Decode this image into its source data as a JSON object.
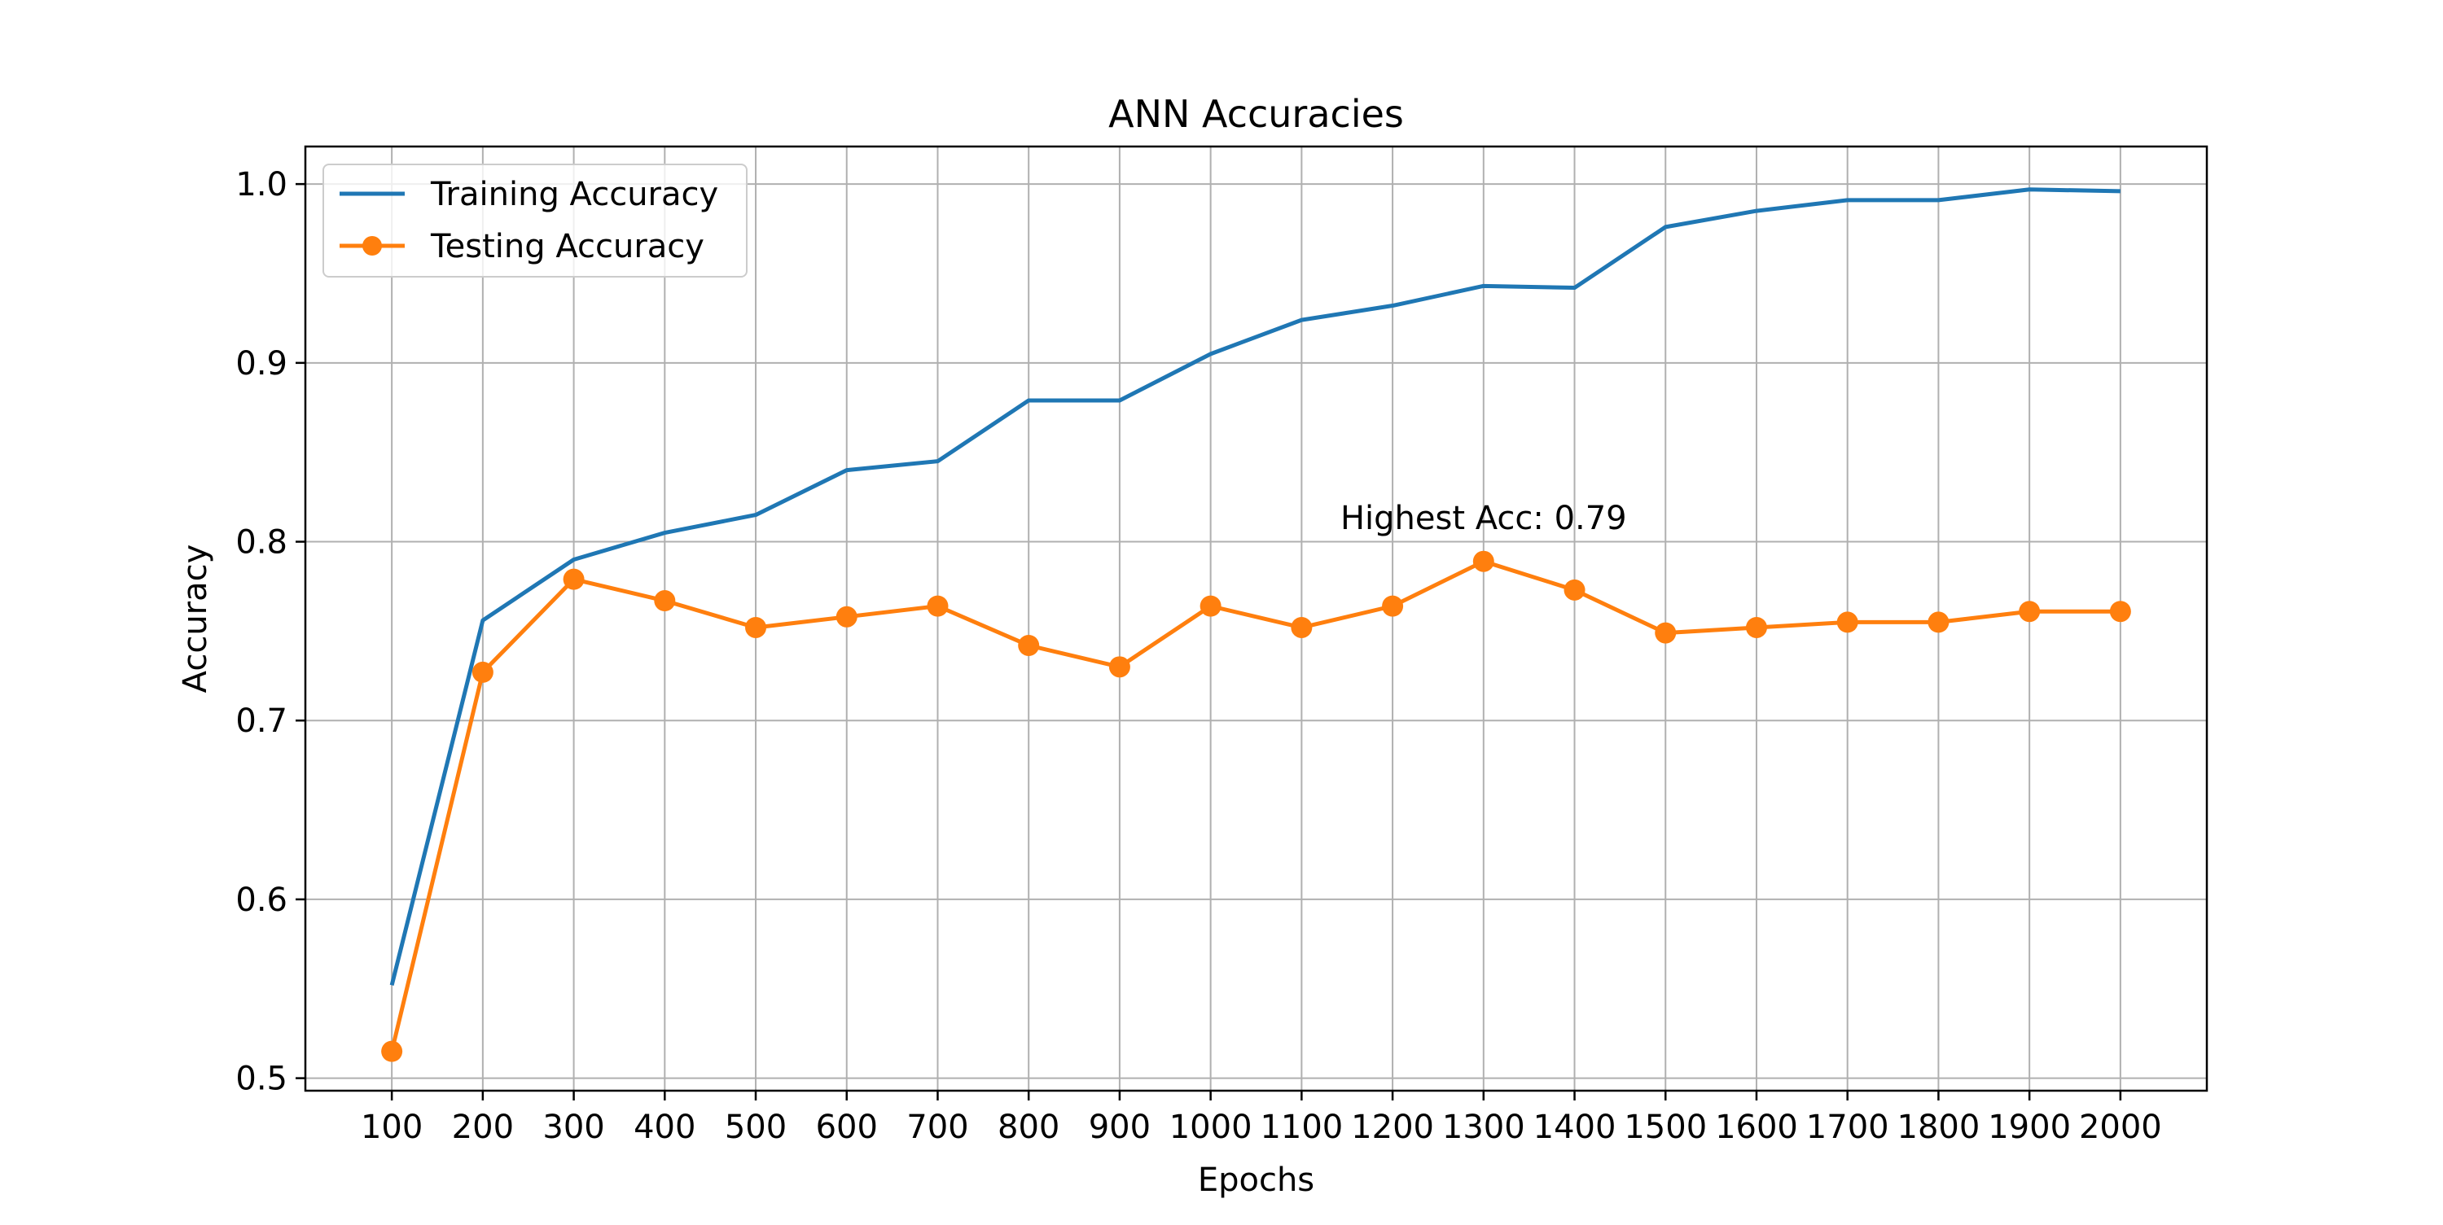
{
  "chart_data": {
    "type": "line",
    "title": "ANN Accuracies",
    "xlabel": "Epochs",
    "ylabel": "Accuracy",
    "x": [
      100,
      200,
      300,
      400,
      500,
      600,
      700,
      800,
      900,
      1000,
      1100,
      1200,
      1300,
      1400,
      1500,
      1600,
      1700,
      1800,
      1900,
      2000
    ],
    "x_tick_labels": [
      "100",
      "200",
      "300",
      "400",
      "500",
      "600",
      "700",
      "800",
      "900",
      "1000",
      "1100",
      "1200",
      "1300",
      "1400",
      "1500",
      "1600",
      "1700",
      "1800",
      "1900",
      "2000"
    ],
    "y_ticks": [
      0.5,
      0.6,
      0.7,
      0.8,
      0.9,
      1.0
    ],
    "y_tick_labels": [
      "0.5",
      "0.6",
      "0.7",
      "0.8",
      "0.9",
      "1.0"
    ],
    "xlim": [
      5,
      2095
    ],
    "ylim": [
      0.493,
      1.021
    ],
    "grid": true,
    "legend_position": "top-left",
    "series": [
      {
        "name": "Training Accuracy",
        "color": "#1f77b4",
        "marker": "none",
        "values": [
          0.552,
          0.756,
          0.79,
          0.805,
          0.815,
          0.84,
          0.845,
          0.879,
          0.879,
          0.905,
          0.924,
          0.932,
          0.943,
          0.942,
          0.976,
          0.985,
          0.991,
          0.991,
          0.997,
          0.996
        ]
      },
      {
        "name": "Testing Accuracy",
        "color": "#ff7f0e",
        "marker": "circle",
        "values": [
          0.515,
          0.727,
          0.779,
          0.767,
          0.752,
          0.758,
          0.764,
          0.742,
          0.73,
          0.764,
          0.752,
          0.764,
          0.789,
          0.773,
          0.749,
          0.752,
          0.755,
          0.755,
          0.761,
          0.761
        ]
      }
    ],
    "annotations": [
      {
        "text": "Highest Acc: 0.79",
        "x": 1300,
        "y": 0.807
      }
    ]
  }
}
